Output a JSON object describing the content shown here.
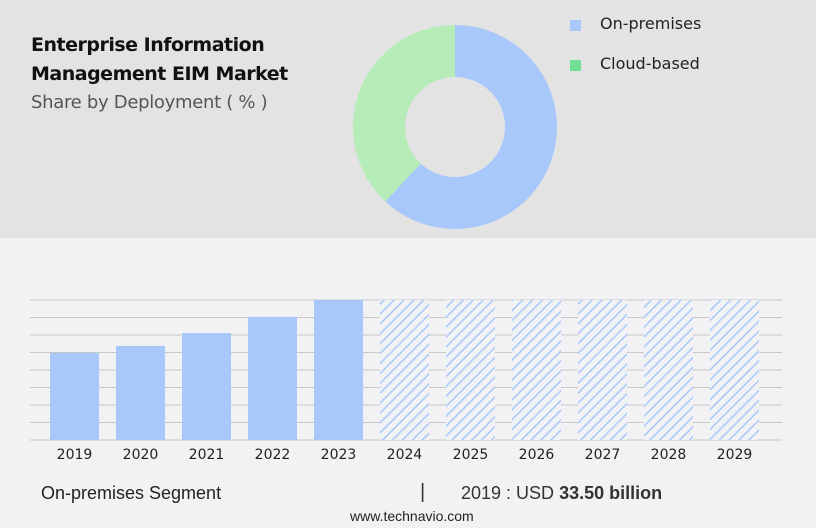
{
  "header": {
    "title_line1": "Enterprise Information",
    "title_line2": "Management EIM Market",
    "subtitle": "Share by Deployment ( % )"
  },
  "chart_data": [
    {
      "type": "pie",
      "variant": "donut",
      "slices": [
        {
          "name": "On-premises",
          "value": 62,
          "color": "#a8c8fc"
        },
        {
          "name": "Cloud-based",
          "value": 38,
          "color": "#b6ecb8"
        }
      ],
      "legend_colors": [
        "#a8c8fc",
        "#6fe094"
      ],
      "legend": "right"
    },
    {
      "type": "bar",
      "categories": [
        "2019",
        "2020",
        "2021",
        "2022",
        "2023",
        "2024",
        "2025",
        "2026",
        "2027",
        "2028",
        "2029"
      ],
      "values": [
        33.5,
        36.2,
        41.2,
        47.4,
        53.9,
        null,
        null,
        null,
        null,
        null,
        null
      ],
      "forecast": [
        false,
        false,
        false,
        false,
        false,
        true,
        true,
        true,
        true,
        true,
        true
      ],
      "color": "#a8c8fc",
      "grid": true,
      "unit": "USD billion"
    }
  ],
  "footer": {
    "segment": "On-premises Segment",
    "separator": "|",
    "value_prefix": "2019 : USD",
    "value": "33.50 billion",
    "website": "www.technavio.com"
  }
}
